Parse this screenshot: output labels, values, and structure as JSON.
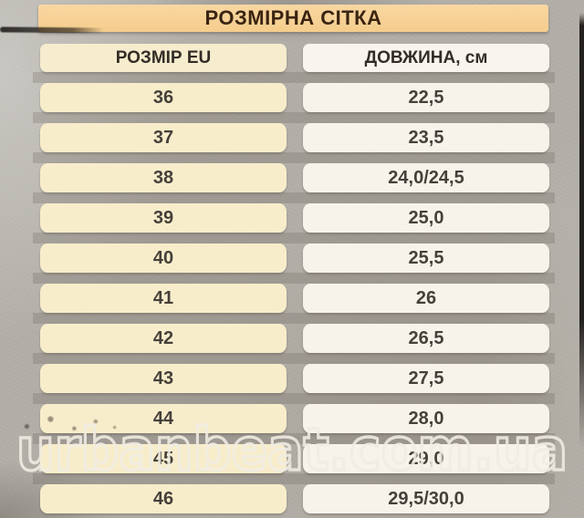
{
  "chart_data": {
    "type": "table",
    "title": "РОЗМІРНА СІТКА",
    "columns": [
      "РОЗМІР EU",
      "ДОВЖИНА, см"
    ],
    "rows": [
      [
        "36",
        "22,5"
      ],
      [
        "37",
        "23,5"
      ],
      [
        "38",
        "24,0/24,5"
      ],
      [
        "39",
        "25,0"
      ],
      [
        "40",
        "25,5"
      ],
      [
        "41",
        "26"
      ],
      [
        "42",
        "26,5"
      ],
      [
        "43",
        "27,5"
      ],
      [
        "44",
        "28,0"
      ],
      [
        "45",
        "29,0"
      ],
      [
        "46",
        "29,5/30,0"
      ]
    ]
  },
  "watermark": "urbanbeat.com.ua",
  "colors": {
    "background": "#b3afa8",
    "title_bar_bg": "#f5cd8d",
    "title_text": "#3a2412",
    "header_left_bg": "#f6ecce",
    "header_right_bg": "#f8f5ee",
    "left_cell_bg": "#f8edcb",
    "right_cell_bg": "#f7f3ea",
    "cell_text": "#45403a",
    "watermark_stroke": "#f1ede4"
  }
}
